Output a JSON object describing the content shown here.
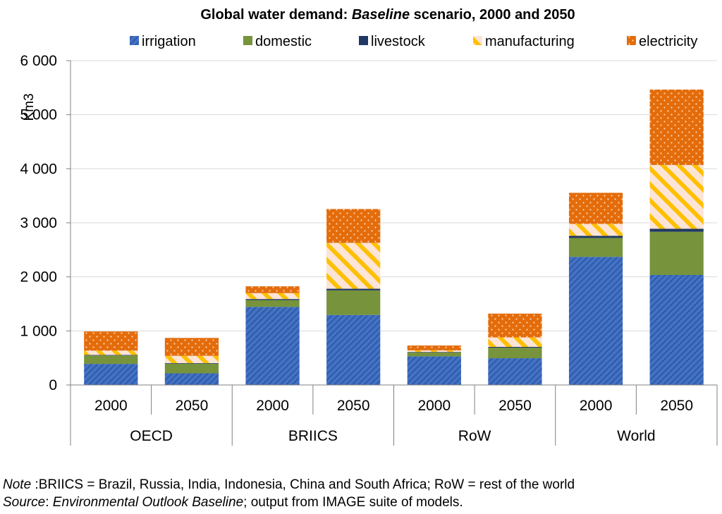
{
  "chart_data": {
    "type": "bar",
    "stacked": true,
    "title_parts": [
      "Global water demand: ",
      "Baseline",
      " scenario, 2000 and 2050"
    ],
    "ylabel": "Km3",
    "xlabel": "",
    "ylim": [
      0,
      6000
    ],
    "yticks": [
      0,
      1000,
      2000,
      3000,
      4000,
      5000,
      6000
    ],
    "ytick_labels": [
      "0",
      "1 000",
      "2 000",
      "3 000",
      "4 000",
      "5 000",
      "6 000"
    ],
    "grid": true,
    "legend_position": "top",
    "groups": [
      "OECD",
      "BRIICS",
      "RoW",
      "World"
    ],
    "categories": [
      "2000",
      "2050",
      "2000",
      "2050",
      "2000",
      "2050",
      "2000",
      "2050"
    ],
    "series": [
      {
        "name": "irrigation",
        "color": "#4472C4",
        "pattern": "diag-stripe",
        "values": [
          390,
          215,
          1445,
          1295,
          530,
          495,
          2370,
          2035
        ]
      },
      {
        "name": "domestic",
        "color": "#77933C",
        "pattern": "solid",
        "values": [
          155,
          180,
          125,
          455,
          70,
          195,
          350,
          800
        ]
      },
      {
        "name": "livestock",
        "color": "#1F3864",
        "pattern": "solid",
        "values": [
          10,
          10,
          20,
          30,
          10,
          15,
          40,
          55
        ]
      },
      {
        "name": "manufacturing",
        "color": "#FFC000",
        "pattern": "cross-stripe",
        "values": [
          80,
          135,
          110,
          850,
          30,
          175,
          220,
          1180
        ]
      },
      {
        "name": "electricity",
        "color": "#E46C0A",
        "pattern": "dots",
        "values": [
          355,
          330,
          125,
          625,
          90,
          440,
          575,
          1395
        ]
      }
    ]
  },
  "footnotes": {
    "note_label": "Note",
    "note_text": " :BRIICS = Brazil, Russia, India, Indonesia, China and South Africa; RoW = rest of the world",
    "source_label": "Source",
    "source_sep": ": ",
    "source_italic": "Environmental Outlook Baseline",
    "source_text": "; output from IMAGE suite of models."
  }
}
